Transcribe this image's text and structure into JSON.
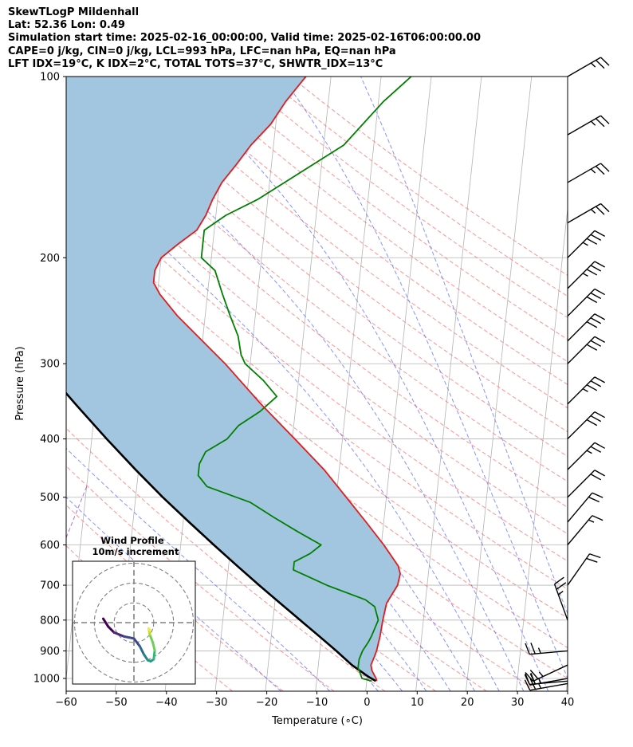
{
  "header": {
    "line1": "SkewTLogP Mildenhall",
    "line2": "Lat: 52.36   Lon: 0.49",
    "line3": "Simulation start time: 2025-02-16_00:00:00, Valid time: 2025-02-16T06:00:00.00",
    "line4": "CAPE=0 j/kg, CIN=0 j/kg, LCL=993 hPa, LFC=nan hPa, EQ=nan hPa",
    "line5": "LFT IDX=19°C, K IDX=2°C, TOTAL TOTS=37°C, SHWTR_IDX=13°C"
  },
  "chart_data": [
    {
      "type": "line",
      "subtype": "skew-T log-P diagram",
      "xlabel": "Temperature ($^{\\circ}$C)",
      "xlabel_display": "Temperature (∘C)",
      "ylabel": "Pressure (hPa)",
      "xlim": [
        -60,
        40
      ],
      "ylim": [
        1050,
        100
      ],
      "y_scale": "log",
      "x_ticks": [
        "−60",
        "−50",
        "−40",
        "−30",
        "−20",
        "−10",
        "0",
        "10",
        "20",
        "30",
        "40"
      ],
      "y_ticks": [
        "100",
        "200",
        "300",
        "400",
        "500",
        "600",
        "700",
        "800",
        "900",
        "1000"
      ],
      "grid": true,
      "colors": {
        "temperature": "#e41a1c",
        "dewpoint": "#008000",
        "parcel": "#000000",
        "shade": "#a3c6e0",
        "dry_adiabat": "#ff6f6f",
        "moist_adiabat": "#5f6fff",
        "isotherm": "#b4b4b4"
      },
      "series": [
        {
          "role": "temperature",
          "p": [
            1010,
            1000,
            970,
            950,
            920,
            900,
            850,
            800,
            750,
            700,
            670,
            650,
            600,
            550,
            500,
            450,
            400,
            350,
            300,
            275,
            250,
            230,
            220,
            210,
            200,
            190,
            180,
            170,
            160,
            150,
            140,
            130,
            120,
            110,
            100
          ],
          "t": [
            2,
            1.8,
            0.8,
            0.5,
            1,
            1.3,
            1.7,
            1.9,
            2.3,
            4.1,
            4.4,
            3.8,
            0.5,
            -3.5,
            -8,
            -13,
            -19.5,
            -27,
            -35,
            -40,
            -45.5,
            -49.5,
            -51,
            -51,
            -50,
            -47,
            -43.5,
            -42,
            -41,
            -39.5,
            -37,
            -34.5,
            -31,
            -28.5,
            -25
          ]
        },
        {
          "role": "dewpoint",
          "p": [
            1010,
            1000,
            960,
            930,
            900,
            870,
            850,
            800,
            760,
            740,
            700,
            660,
            640,
            620,
            600,
            570,
            540,
            510,
            480,
            460,
            440,
            420,
            400,
            380,
            360,
            340,
            320,
            300,
            290,
            270,
            250,
            230,
            210,
            200,
            190,
            180,
            170,
            160,
            130,
            110,
            100
          ],
          "t": [
            1,
            -1,
            -2,
            -2,
            -1.5,
            -0.5,
            0,
            1,
            0,
            -2,
            -10,
            -17,
            -17,
            -14,
            -12,
            -17,
            -22,
            -27,
            -36,
            -38,
            -38,
            -37,
            -33,
            -31,
            -27,
            -24,
            -27,
            -31,
            -32,
            -33,
            -35,
            -37,
            -39,
            -42,
            -42,
            -42,
            -38,
            -32,
            -16,
            -9,
            -4
          ]
        },
        {
          "role": "parcel",
          "p": [
            1010,
            993,
            950,
            900,
            850,
            800,
            750,
            700,
            650,
            600,
            550,
            500,
            450,
            400,
            350,
            300,
            250,
            200,
            150,
            120,
            100
          ],
          "t": [
            1.8,
            0.2,
            -3.3,
            -6.7,
            -10.5,
            -14.6,
            -18.9,
            -23.5,
            -28.3,
            -33.4,
            -38.8,
            -44.6,
            -50.6,
            -57,
            -64,
            -71.8,
            -80.7,
            -91.2,
            -104.4,
            -114.4,
            -122.5
          ]
        }
      ],
      "wind_barbs": [
        {
          "p": 100,
          "speed_kt": 25,
          "dir_deg": 300
        },
        {
          "p": 125,
          "speed_kt": 25,
          "dir_deg": 300
        },
        {
          "p": 150,
          "speed_kt": 25,
          "dir_deg": 300
        },
        {
          "p": 175,
          "speed_kt": 25,
          "dir_deg": 300
        },
        {
          "p": 200,
          "speed_kt": 35,
          "dir_deg": 315
        },
        {
          "p": 225,
          "speed_kt": 35,
          "dir_deg": 315
        },
        {
          "p": 250,
          "speed_kt": 30,
          "dir_deg": 315
        },
        {
          "p": 275,
          "speed_kt": 30,
          "dir_deg": 315
        },
        {
          "p": 300,
          "speed_kt": 30,
          "dir_deg": 315
        },
        {
          "p": 350,
          "speed_kt": 35,
          "dir_deg": 315
        },
        {
          "p": 400,
          "speed_kt": 30,
          "dir_deg": 315
        },
        {
          "p": 450,
          "speed_kt": 25,
          "dir_deg": 315
        },
        {
          "p": 500,
          "speed_kt": 20,
          "dir_deg": 315
        },
        {
          "p": 550,
          "speed_kt": 20,
          "dir_deg": 320
        },
        {
          "p": 600,
          "speed_kt": 15,
          "dir_deg": 320
        },
        {
          "p": 700,
          "speed_kt": 20,
          "dir_deg": 325
        },
        {
          "p": 800,
          "speed_kt": 25,
          "dir_deg": 20
        },
        {
          "p": 900,
          "speed_kt": 25,
          "dir_deg": 95
        },
        {
          "p": 950,
          "speed_kt": 25,
          "dir_deg": 115
        },
        {
          "p": 1000,
          "speed_kt": 25,
          "dir_deg": 100
        },
        {
          "p": 1010,
          "speed_kt": 25,
          "dir_deg": 95
        },
        {
          "p": 1020,
          "speed_kt": 25,
          "dir_deg": 100
        }
      ]
    },
    {
      "type": "line",
      "subtype": "hodograph",
      "title": "Wind Profile",
      "subtitle": "10m/s increment",
      "ring_interval_ms": 10,
      "rings": 3,
      "u": [
        -15.5,
        -13,
        -10,
        -5,
        0,
        3,
        5,
        7,
        8.5,
        10,
        10.5,
        9.5,
        8,
        7.5,
        8
      ],
      "v": [
        2,
        -2,
        -5,
        -7,
        -8,
        -12,
        -16,
        -19,
        -19.5,
        -18.5,
        -14,
        -10,
        -6,
        -3,
        -4
      ]
    }
  ]
}
